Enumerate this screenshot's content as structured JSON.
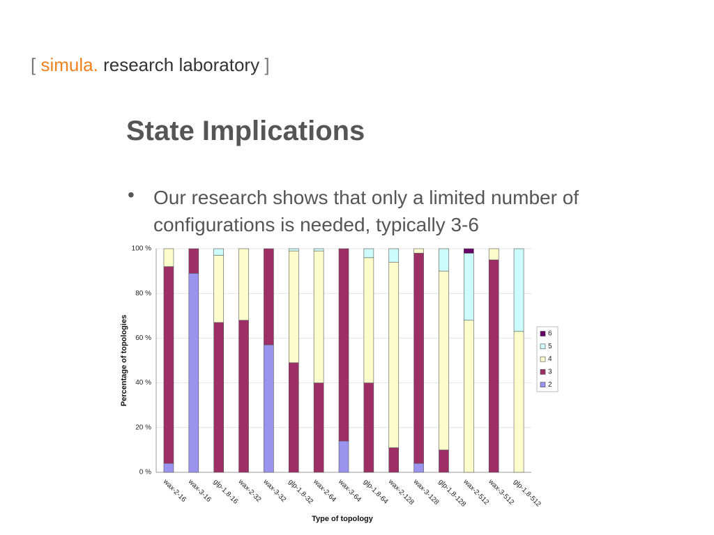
{
  "logo": {
    "open": "[",
    "name": "simula",
    "dot": ".",
    "rest": "research laboratory",
    "close": "]"
  },
  "slide": {
    "title": "State Implications",
    "bullets": [
      "Our research shows that only a limited number of configurations is needed, typically 3-6"
    ]
  },
  "chart_data": {
    "type": "stacked-bar",
    "x_label": "Type of topology",
    "y_label": "Percentage of topologies",
    "categories": [
      "wax-2-16",
      "wax-3-16",
      "glp-1.8-16",
      "wax-2-32",
      "wax-3-32",
      "glp-1.8-32",
      "wax-2-64",
      "wax-3-64",
      "glp-1.8-64",
      "wax-2-128",
      "wax-3-128",
      "glp-1.8-128",
      "wax-2-512",
      "wax-3-512",
      "glp-1.8-512"
    ],
    "series": [
      {
        "name": "2",
        "color": "#9a94ee",
        "values": [
          4,
          89,
          0,
          0,
          57,
          0,
          0,
          14,
          0,
          0,
          4,
          0,
          0,
          0,
          0
        ]
      },
      {
        "name": "3",
        "color": "#9e2f66",
        "values": [
          88,
          11,
          67,
          68,
          43,
          49,
          40,
          86,
          40,
          11,
          94,
          10,
          0,
          95,
          0
        ]
      },
      {
        "name": "4",
        "color": "#fdfdcc",
        "values": [
          8,
          0,
          30,
          32,
          0,
          50,
          59,
          0,
          56,
          83,
          2,
          80,
          68,
          5,
          63
        ]
      },
      {
        "name": "5",
        "color": "#ccfcfc",
        "values": [
          0,
          0,
          3,
          0,
          0,
          1,
          1,
          0,
          4,
          6,
          0,
          10,
          30,
          0,
          37
        ]
      },
      {
        "name": "6",
        "color": "#660066",
        "values": [
          0,
          0,
          0,
          0,
          0,
          0,
          0,
          0,
          0,
          0,
          0,
          0,
          2,
          0,
          0
        ]
      }
    ],
    "ylim": [
      0,
      100
    ],
    "yticks": [
      {
        "value": 0,
        "label": "0 %"
      },
      {
        "value": 20,
        "label": "20 %"
      },
      {
        "value": 40,
        "label": "40 %"
      },
      {
        "value": 60,
        "label": "60 %"
      },
      {
        "value": 80,
        "label": "80 %"
      },
      {
        "value": 100,
        "label": "100 %"
      }
    ],
    "grid": true,
    "legend": "right"
  }
}
